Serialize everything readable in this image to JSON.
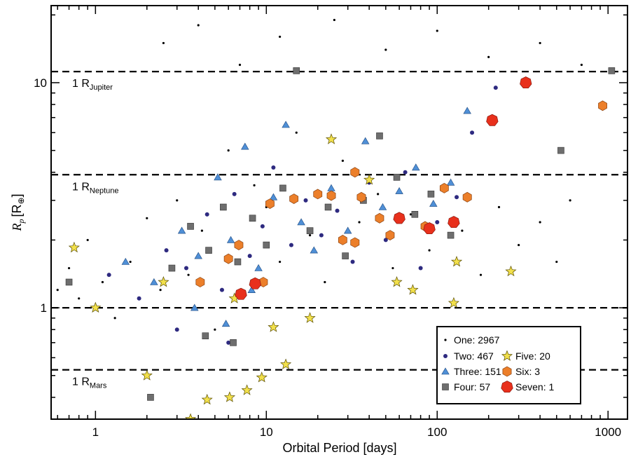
{
  "chart_data": {
    "type": "scatter",
    "title": "",
    "xlabel": "Orbital Period [days]",
    "ylabel": {
      "main": "R",
      "sub": "p",
      "unit": "[R",
      "unit_sub": "⊕",
      "unit_close": "]"
    },
    "x_scale": "log",
    "y_scale": "log",
    "xlim": [
      0.55,
      1300
    ],
    "ylim": [
      0.32,
      22
    ],
    "x_ticks": [
      {
        "value": 1,
        "label": "1"
      },
      {
        "value": 10,
        "label": "10"
      },
      {
        "value": 100,
        "label": "100"
      },
      {
        "value": 1000,
        "label": "1000"
      }
    ],
    "y_ticks": [
      {
        "value": 1,
        "label": "1"
      },
      {
        "value": 10,
        "label": "10"
      }
    ],
    "reference_lines": [
      {
        "y": 11.2,
        "label": "1 R",
        "sub": "Jupiter"
      },
      {
        "y": 3.9,
        "label": "1 R",
        "sub": "Neptune"
      },
      {
        "y": 1.0,
        "label": "",
        "sub": ""
      },
      {
        "y": 0.53,
        "label": "1 R",
        "sub": "Mars"
      }
    ],
    "legend_position": "bottom-right",
    "series": [
      {
        "name": "One: 2967",
        "marker": "dot",
        "color": "#000000",
        "count": 2967,
        "points": [
          [
            0.6,
            1.2
          ],
          [
            0.7,
            1.5
          ],
          [
            0.8,
            1.1
          ],
          [
            0.9,
            2.0
          ],
          [
            1.1,
            1.3
          ],
          [
            1.3,
            0.9
          ],
          [
            1.6,
            1.6
          ],
          [
            2.0,
            2.5
          ],
          [
            2.4,
            1.2
          ],
          [
            3.0,
            3.0
          ],
          [
            3.5,
            1.4
          ],
          [
            4.2,
            2.2
          ],
          [
            5.0,
            0.8
          ],
          [
            6.0,
            5.0
          ],
          [
            7.0,
            1.9
          ],
          [
            8.5,
            3.5
          ],
          [
            10,
            2.8
          ],
          [
            12,
            1.6
          ],
          [
            15,
            6.0
          ],
          [
            18,
            2.1
          ],
          [
            22,
            1.3
          ],
          [
            28,
            4.5
          ],
          [
            35,
            2.4
          ],
          [
            45,
            3.2
          ],
          [
            55,
            1.5
          ],
          [
            70,
            2.6
          ],
          [
            90,
            1.8
          ],
          [
            110,
            3.5
          ],
          [
            140,
            2.2
          ],
          [
            180,
            1.4
          ],
          [
            230,
            2.8
          ],
          [
            300,
            1.9
          ],
          [
            400,
            2.4
          ],
          [
            500,
            1.6
          ],
          [
            600,
            3.0
          ],
          [
            2.5,
            15
          ],
          [
            4,
            18
          ],
          [
            7,
            12
          ],
          [
            12,
            16
          ],
          [
            25,
            19
          ],
          [
            50,
            14
          ],
          [
            100,
            17
          ],
          [
            200,
            13
          ],
          [
            400,
            15
          ],
          [
            700,
            12
          ]
        ]
      },
      {
        "name": "Two: 467",
        "marker": "circle",
        "color": "#2e2a80",
        "count": 467,
        "points": [
          [
            1.2,
            1.4
          ],
          [
            1.8,
            1.1
          ],
          [
            2.6,
            1.8
          ],
          [
            3.4,
            1.5
          ],
          [
            4.5,
            2.6
          ],
          [
            5.5,
            1.2
          ],
          [
            6.5,
            3.2
          ],
          [
            8,
            1.7
          ],
          [
            9.5,
            2.3
          ],
          [
            11,
            4.2
          ],
          [
            14,
            1.9
          ],
          [
            17,
            3.0
          ],
          [
            21,
            2.1
          ],
          [
            26,
            2.7
          ],
          [
            32,
            1.6
          ],
          [
            40,
            3.6
          ],
          [
            50,
            2.0
          ],
          [
            65,
            4.0
          ],
          [
            80,
            1.5
          ],
          [
            100,
            2.4
          ],
          [
            130,
            3.1
          ],
          [
            160,
            6.0
          ],
          [
            220,
            9.5
          ],
          [
            3,
            0.8
          ],
          [
            6,
            0.7
          ]
        ]
      },
      {
        "name": "Three: 151",
        "marker": "triangle",
        "color": "#4f8fd6",
        "count": 151,
        "points": [
          [
            1.5,
            1.6
          ],
          [
            2.2,
            1.3
          ],
          [
            3.2,
            2.2
          ],
          [
            4.0,
            1.7
          ],
          [
            5.2,
            3.8
          ],
          [
            6.2,
            2.0
          ],
          [
            7.5,
            5.2
          ],
          [
            9,
            1.5
          ],
          [
            11,
            3.1
          ],
          [
            13,
            6.5
          ],
          [
            16,
            2.4
          ],
          [
            19,
            1.8
          ],
          [
            24,
            3.4
          ],
          [
            30,
            2.2
          ],
          [
            38,
            5.5
          ],
          [
            48,
            2.8
          ],
          [
            60,
            3.3
          ],
          [
            75,
            4.2
          ],
          [
            95,
            2.9
          ],
          [
            120,
            3.6
          ],
          [
            150,
            7.5
          ],
          [
            3.8,
            1.0
          ],
          [
            5.8,
            0.85
          ],
          [
            8.2,
            1.2
          ]
        ]
      },
      {
        "name": "Four: 57",
        "marker": "square",
        "color": "#6e6e6e",
        "count": 57,
        "points": [
          [
            0.7,
            1.3
          ],
          [
            2.1,
            0.4
          ],
          [
            2.8,
            1.5
          ],
          [
            3.6,
            2.3
          ],
          [
            4.6,
            1.8
          ],
          [
            5.6,
            2.8
          ],
          [
            6.8,
            1.6
          ],
          [
            8.3,
            2.5
          ],
          [
            10,
            1.9
          ],
          [
            12.5,
            3.4
          ],
          [
            15,
            11.3
          ],
          [
            18,
            2.2
          ],
          [
            23,
            2.8
          ],
          [
            29,
            1.7
          ],
          [
            37,
            3.0
          ],
          [
            46,
            5.8
          ],
          [
            58,
            3.8
          ],
          [
            74,
            2.6
          ],
          [
            92,
            3.2
          ],
          [
            120,
            2.1
          ],
          [
            530,
            5.0
          ],
          [
            1050,
            11.3
          ],
          [
            4.4,
            0.75
          ],
          [
            6.4,
            0.7
          ]
        ]
      },
      {
        "name": "Five: 20",
        "marker": "star",
        "color": "#f2e04b",
        "count": 20,
        "points": [
          [
            0.75,
            1.85
          ],
          [
            1.0,
            1.0
          ],
          [
            2.0,
            0.5
          ],
          [
            2.5,
            1.3
          ],
          [
            3.6,
            0.32
          ],
          [
            4.5,
            0.39
          ],
          [
            6.1,
            0.4
          ],
          [
            7.7,
            0.43
          ],
          [
            9.4,
            0.49
          ],
          [
            13,
            0.56
          ],
          [
            18,
            0.9
          ],
          [
            24,
            5.6
          ],
          [
            40,
            3.7
          ],
          [
            58,
            1.3
          ],
          [
            72,
            1.2
          ],
          [
            125,
            1.05
          ],
          [
            130,
            1.6
          ],
          [
            270,
            1.45
          ],
          [
            6.5,
            1.1
          ],
          [
            11,
            0.82
          ]
        ]
      },
      {
        "name": "Six: 3",
        "marker": "hexagon",
        "color": "#ec7f2a",
        "count": 3,
        "points": [
          [
            4.1,
            1.3
          ],
          [
            6.0,
            1.65
          ],
          [
            10.5,
            2.9
          ],
          [
            14.5,
            3.05
          ],
          [
            20,
            3.2
          ],
          [
            24,
            3.15
          ],
          [
            33,
            4.0
          ],
          [
            36,
            3.1
          ],
          [
            46,
            2.5
          ],
          [
            53,
            2.1
          ],
          [
            85,
            2.3
          ],
          [
            110,
            3.4
          ],
          [
            150,
            3.1
          ],
          [
            930,
            7.9
          ],
          [
            9.6,
            1.3
          ],
          [
            6.9,
            1.9
          ],
          [
            28,
            2.0
          ],
          [
            33,
            1.95
          ]
        ]
      },
      {
        "name": "Seven: 1",
        "marker": "heptagon",
        "color": "#e8301c",
        "count": 1,
        "points": [
          [
            7.1,
            1.15
          ],
          [
            8.6,
            1.28
          ],
          [
            60,
            2.5
          ],
          [
            90,
            2.25
          ],
          [
            125,
            2.4
          ],
          [
            210,
            6.8
          ],
          [
            330,
            10.0
          ]
        ]
      }
    ]
  }
}
